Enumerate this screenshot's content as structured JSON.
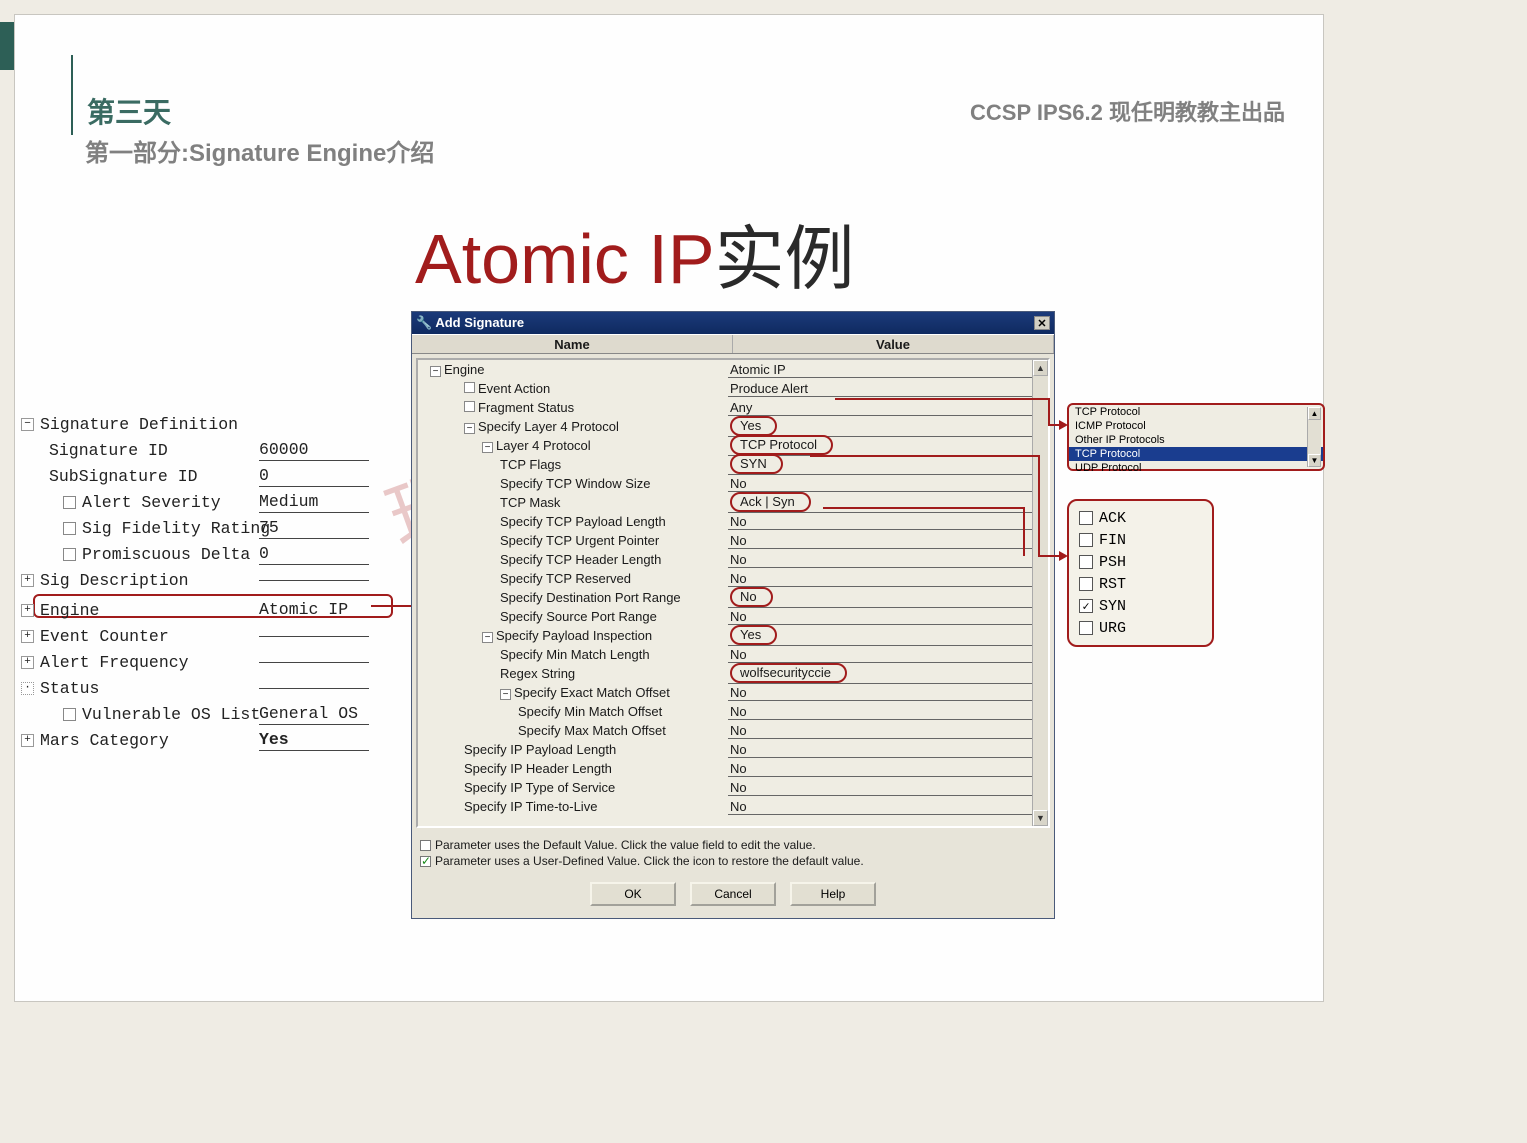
{
  "header": {
    "day": "第三天",
    "section": "第一部分:Signature Engine介绍",
    "right": "CCSP IPS6.2  现任明教教主出品"
  },
  "title": {
    "en": "Atomic IP",
    "cn": "实例"
  },
  "watermark": "现任明教教主",
  "left_tree": {
    "root": "Signature Definition",
    "items": [
      {
        "name": "Signature ID",
        "value": "60000",
        "check": false
      },
      {
        "name": "SubSignature ID",
        "value": "0",
        "check": false
      },
      {
        "name": "Alert Severity",
        "value": "Medium",
        "check": true
      },
      {
        "name": "Sig Fidelity Rating",
        "value": "75",
        "check": true
      },
      {
        "name": "Promiscuous Delta",
        "value": "0",
        "check": true
      }
    ],
    "sig_desc": "Sig Description",
    "engine": {
      "name": "Engine",
      "value": "Atomic IP"
    },
    "event_counter": "Event Counter",
    "alert_freq": "Alert Frequency",
    "status": "Status",
    "vuln_os": {
      "name": "Vulnerable OS List",
      "value": "General OS"
    },
    "mars": {
      "name": "Mars Category",
      "value": "Yes"
    }
  },
  "dialog": {
    "title": "Add Signature",
    "col_name": "Name",
    "col_value": "Value",
    "rows": [
      {
        "pad": 1,
        "icon": "minus",
        "name": "Engine",
        "value": "Atomic IP",
        "circle": false,
        "border": true
      },
      {
        "pad": 2,
        "icon": "check",
        "name": "Event Action",
        "value": "Produce Alert",
        "circle": false,
        "border": true
      },
      {
        "pad": 2,
        "icon": "check",
        "name": "Fragment Status",
        "value": "Any",
        "circle": false,
        "border": true
      },
      {
        "pad": 2,
        "icon": "minus",
        "name": "Specify Layer 4 Protocol",
        "value": "Yes",
        "circle": true,
        "border": true
      },
      {
        "pad": 3,
        "icon": "minus",
        "name": "Layer 4 Protocol",
        "value": "TCP Protocol",
        "circle": true,
        "border": true
      },
      {
        "pad": 4,
        "icon": "",
        "name": "TCP Flags",
        "value": "SYN",
        "circle": true,
        "border": true
      },
      {
        "pad": 4,
        "icon": "",
        "name": "Specify TCP Window Size",
        "value": "No",
        "circle": false,
        "border": true
      },
      {
        "pad": 4,
        "icon": "",
        "name": "TCP Mask",
        "value": "Ack | Syn",
        "circle": true,
        "border": true
      },
      {
        "pad": 4,
        "icon": "",
        "name": "Specify TCP Payload Length",
        "value": "No",
        "circle": false,
        "border": true
      },
      {
        "pad": 4,
        "icon": "",
        "name": "Specify TCP Urgent Pointer",
        "value": "No",
        "circle": false,
        "border": true
      },
      {
        "pad": 4,
        "icon": "",
        "name": "Specify TCP Header Length",
        "value": "No",
        "circle": false,
        "border": true
      },
      {
        "pad": 4,
        "icon": "",
        "name": "Specify TCP Reserved",
        "value": "No",
        "circle": false,
        "border": true
      },
      {
        "pad": 4,
        "icon": "",
        "name": "Specify Destination Port Range",
        "value": "No",
        "circle": true,
        "border": true
      },
      {
        "pad": 4,
        "icon": "",
        "name": "Specify Source Port Range",
        "value": "No",
        "circle": false,
        "border": true
      },
      {
        "pad": 3,
        "icon": "minus",
        "name": "Specify Payload Inspection",
        "value": "Yes",
        "circle": true,
        "border": true
      },
      {
        "pad": 4,
        "icon": "",
        "name": "Specify Min Match Length",
        "value": "No",
        "circle": false,
        "border": true
      },
      {
        "pad": 4,
        "icon": "",
        "name": "Regex String",
        "value": "wolfsecurityccie",
        "circle": true,
        "border": true
      },
      {
        "pad": 4,
        "icon": "minus",
        "name": "Specify Exact Match Offset",
        "value": "No",
        "circle": false,
        "border": true
      },
      {
        "pad": 5,
        "icon": "",
        "name": "Specify Min Match Offset",
        "value": "No",
        "circle": false,
        "border": true
      },
      {
        "pad": 5,
        "icon": "",
        "name": "Specify Max Match Offset",
        "value": "No",
        "circle": false,
        "border": true
      },
      {
        "pad": 2,
        "icon": "",
        "name": "Specify IP Payload Length",
        "value": "No",
        "circle": false,
        "border": true
      },
      {
        "pad": 2,
        "icon": "",
        "name": "Specify IP Header Length",
        "value": "No",
        "circle": false,
        "border": true
      },
      {
        "pad": 2,
        "icon": "",
        "name": "Specify IP Type of Service",
        "value": "No",
        "circle": false,
        "border": true
      },
      {
        "pad": 2,
        "icon": "",
        "name": "Specify IP Time-to-Live",
        "value": "No",
        "circle": false,
        "border": true
      }
    ],
    "note1": "Parameter uses the Default Value.  Click the value field to edit the value.",
    "note2": "Parameter uses a User-Defined Value.  Click the icon to restore the default value.",
    "buttons": {
      "ok": "OK",
      "cancel": "Cancel",
      "help": "Help"
    }
  },
  "proto_list": {
    "items": [
      {
        "label": "TCP Protocol",
        "sel": false
      },
      {
        "label": "ICMP Protocol",
        "sel": false
      },
      {
        "label": "Other IP Protocols",
        "sel": false
      },
      {
        "label": "TCP Protocol",
        "sel": true
      },
      {
        "label": "UDP Protocol",
        "sel": false
      }
    ]
  },
  "flag_list": [
    {
      "label": "ACK",
      "on": false
    },
    {
      "label": "FIN",
      "on": false
    },
    {
      "label": "PSH",
      "on": false
    },
    {
      "label": "RST",
      "on": false
    },
    {
      "label": "SYN",
      "on": true
    },
    {
      "label": "URG",
      "on": false
    }
  ],
  "colors": {
    "accent_red": "#a11c1c",
    "teal": "#2d5f56",
    "dlg_title_top": "#1b3a7a",
    "dlg_title_bot": "#0f2a60",
    "body_bg": "#efece4",
    "panel_bg": "#efede3"
  }
}
